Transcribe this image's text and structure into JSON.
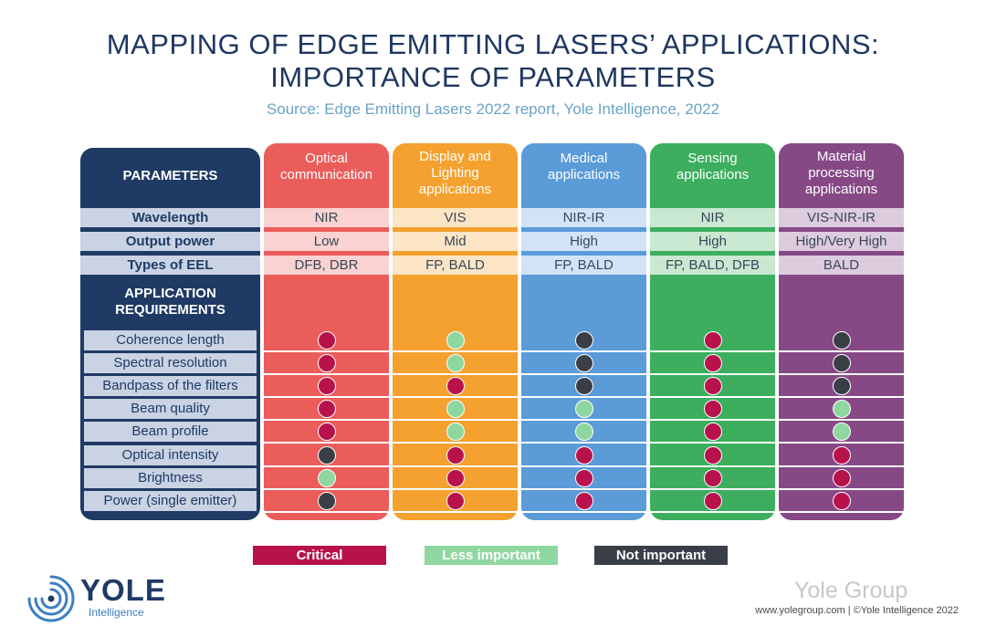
{
  "header": {
    "title_line1": "MAPPING OF EDGE EMITTING LASERS’ APPLICATIONS:",
    "title_line2": "IMPORTANCE OF PARAMETERS",
    "subtitle": "Source: Edge Emitting Lasers 2022 report, Yole Intelligence, 2022"
  },
  "chart_data": {
    "type": "table",
    "parameters_header": "PARAMETERS",
    "requirements_header": "APPLICATION REQUIREMENTS",
    "columns": [
      {
        "label": "Optical communication",
        "color": "#ea5d5b"
      },
      {
        "label": "Display and Lighting applications",
        "color": "#f4a12f"
      },
      {
        "label": "Medical applications",
        "color": "#5a9bd8"
      },
      {
        "label": "Sensing applications",
        "color": "#3cae5e"
      },
      {
        "label": "Material processing applications",
        "color": "#864986"
      }
    ],
    "parameters": [
      {
        "name": "Wavelength",
        "values": [
          "NIR",
          "VIS",
          "NIR-IR",
          "NIR",
          "VIS-NIR-IR"
        ]
      },
      {
        "name": "Output power",
        "values": [
          "Low",
          "Mid",
          "High",
          "High",
          "High/Very High"
        ]
      },
      {
        "name": "Types of EEL",
        "values": [
          "DFB, DBR",
          "FP, BALD",
          "FP, BALD",
          "FP, BALD, DFB",
          "BALD"
        ]
      }
    ],
    "requirements": [
      {
        "name": "Coherence length",
        "levels": [
          "critical",
          "less",
          "not",
          "critical",
          "not"
        ]
      },
      {
        "name": "Spectral resolution",
        "levels": [
          "critical",
          "less",
          "not",
          "critical",
          "not"
        ]
      },
      {
        "name": "Bandpass of the filters",
        "levels": [
          "critical",
          "critical",
          "not",
          "critical",
          "not"
        ]
      },
      {
        "name": "Beam quality",
        "levels": [
          "critical",
          "less",
          "less",
          "critical",
          "less"
        ]
      },
      {
        "name": "Beam profile",
        "levels": [
          "critical",
          "less",
          "less",
          "critical",
          "less"
        ]
      },
      {
        "name": "Optical intensity",
        "levels": [
          "not",
          "critical",
          "critical",
          "critical",
          "critical"
        ]
      },
      {
        "name": "Brightness",
        "levels": [
          "less",
          "critical",
          "critical",
          "critical",
          "critical"
        ]
      },
      {
        "name": "Power (single emitter)",
        "levels": [
          "not",
          "critical",
          "critical",
          "critical",
          "critical"
        ]
      }
    ],
    "legend": [
      {
        "key": "critical",
        "label": "Critical",
        "color": "#b8124d"
      },
      {
        "key": "less",
        "label": "Less important",
        "color": "#8fd7a0"
      },
      {
        "key": "not",
        "label": "Not important",
        "color": "#3a3f47"
      }
    ]
  },
  "branding": {
    "logo_name": "YOLE",
    "logo_sub": "Intelligence",
    "watermark": "Yole Group",
    "footer": "www.yolegroup.com | ©Yole Intelligence 2022",
    "logo_color": "#1f3a64",
    "logo_accent": "#3d7fc0"
  }
}
